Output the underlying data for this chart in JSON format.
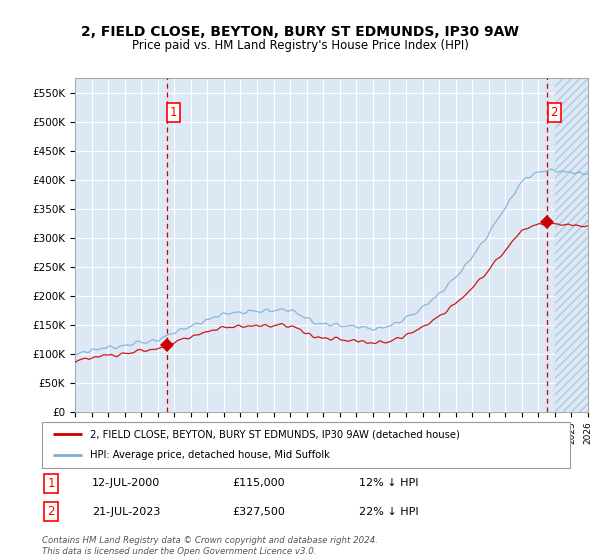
{
  "title": "2, FIELD CLOSE, BEYTON, BURY ST EDMUNDS, IP30 9AW",
  "subtitle": "Price paid vs. HM Land Registry's House Price Index (HPI)",
  "ylim": [
    0,
    575000
  ],
  "yticks": [
    0,
    50000,
    100000,
    150000,
    200000,
    250000,
    300000,
    350000,
    400000,
    450000,
    500000,
    550000
  ],
  "ytick_labels": [
    "£0",
    "£50K",
    "£100K",
    "£150K",
    "£200K",
    "£250K",
    "£300K",
    "£350K",
    "£400K",
    "£450K",
    "£500K",
    "£550K"
  ],
  "x_start_year": 1995,
  "x_end_year": 2026,
  "background_color": "#dce9f5",
  "grid_color": "#ffffff",
  "sale1_x": 2000.54,
  "sale1_price": 115000,
  "sale2_x": 2023.54,
  "sale2_price": 327500,
  "line_color_red": "#cc0000",
  "line_color_blue": "#7aadd4",
  "dashed_line_color": "#cc0000",
  "legend_label1": "2, FIELD CLOSE, BEYTON, BURY ST EDMUNDS, IP30 9AW (detached house)",
  "legend_label2": "HPI: Average price, detached house, Mid Suffolk",
  "annotation1_date": "12-JUL-2000",
  "annotation1_price": "£115,000",
  "annotation1_pct": "12% ↓ HPI",
  "annotation2_date": "21-JUL-2023",
  "annotation2_price": "£327,500",
  "annotation2_pct": "22% ↓ HPI",
  "footer": "Contains HM Land Registry data © Crown copyright and database right 2024.\nThis data is licensed under the Open Government Licence v3.0."
}
